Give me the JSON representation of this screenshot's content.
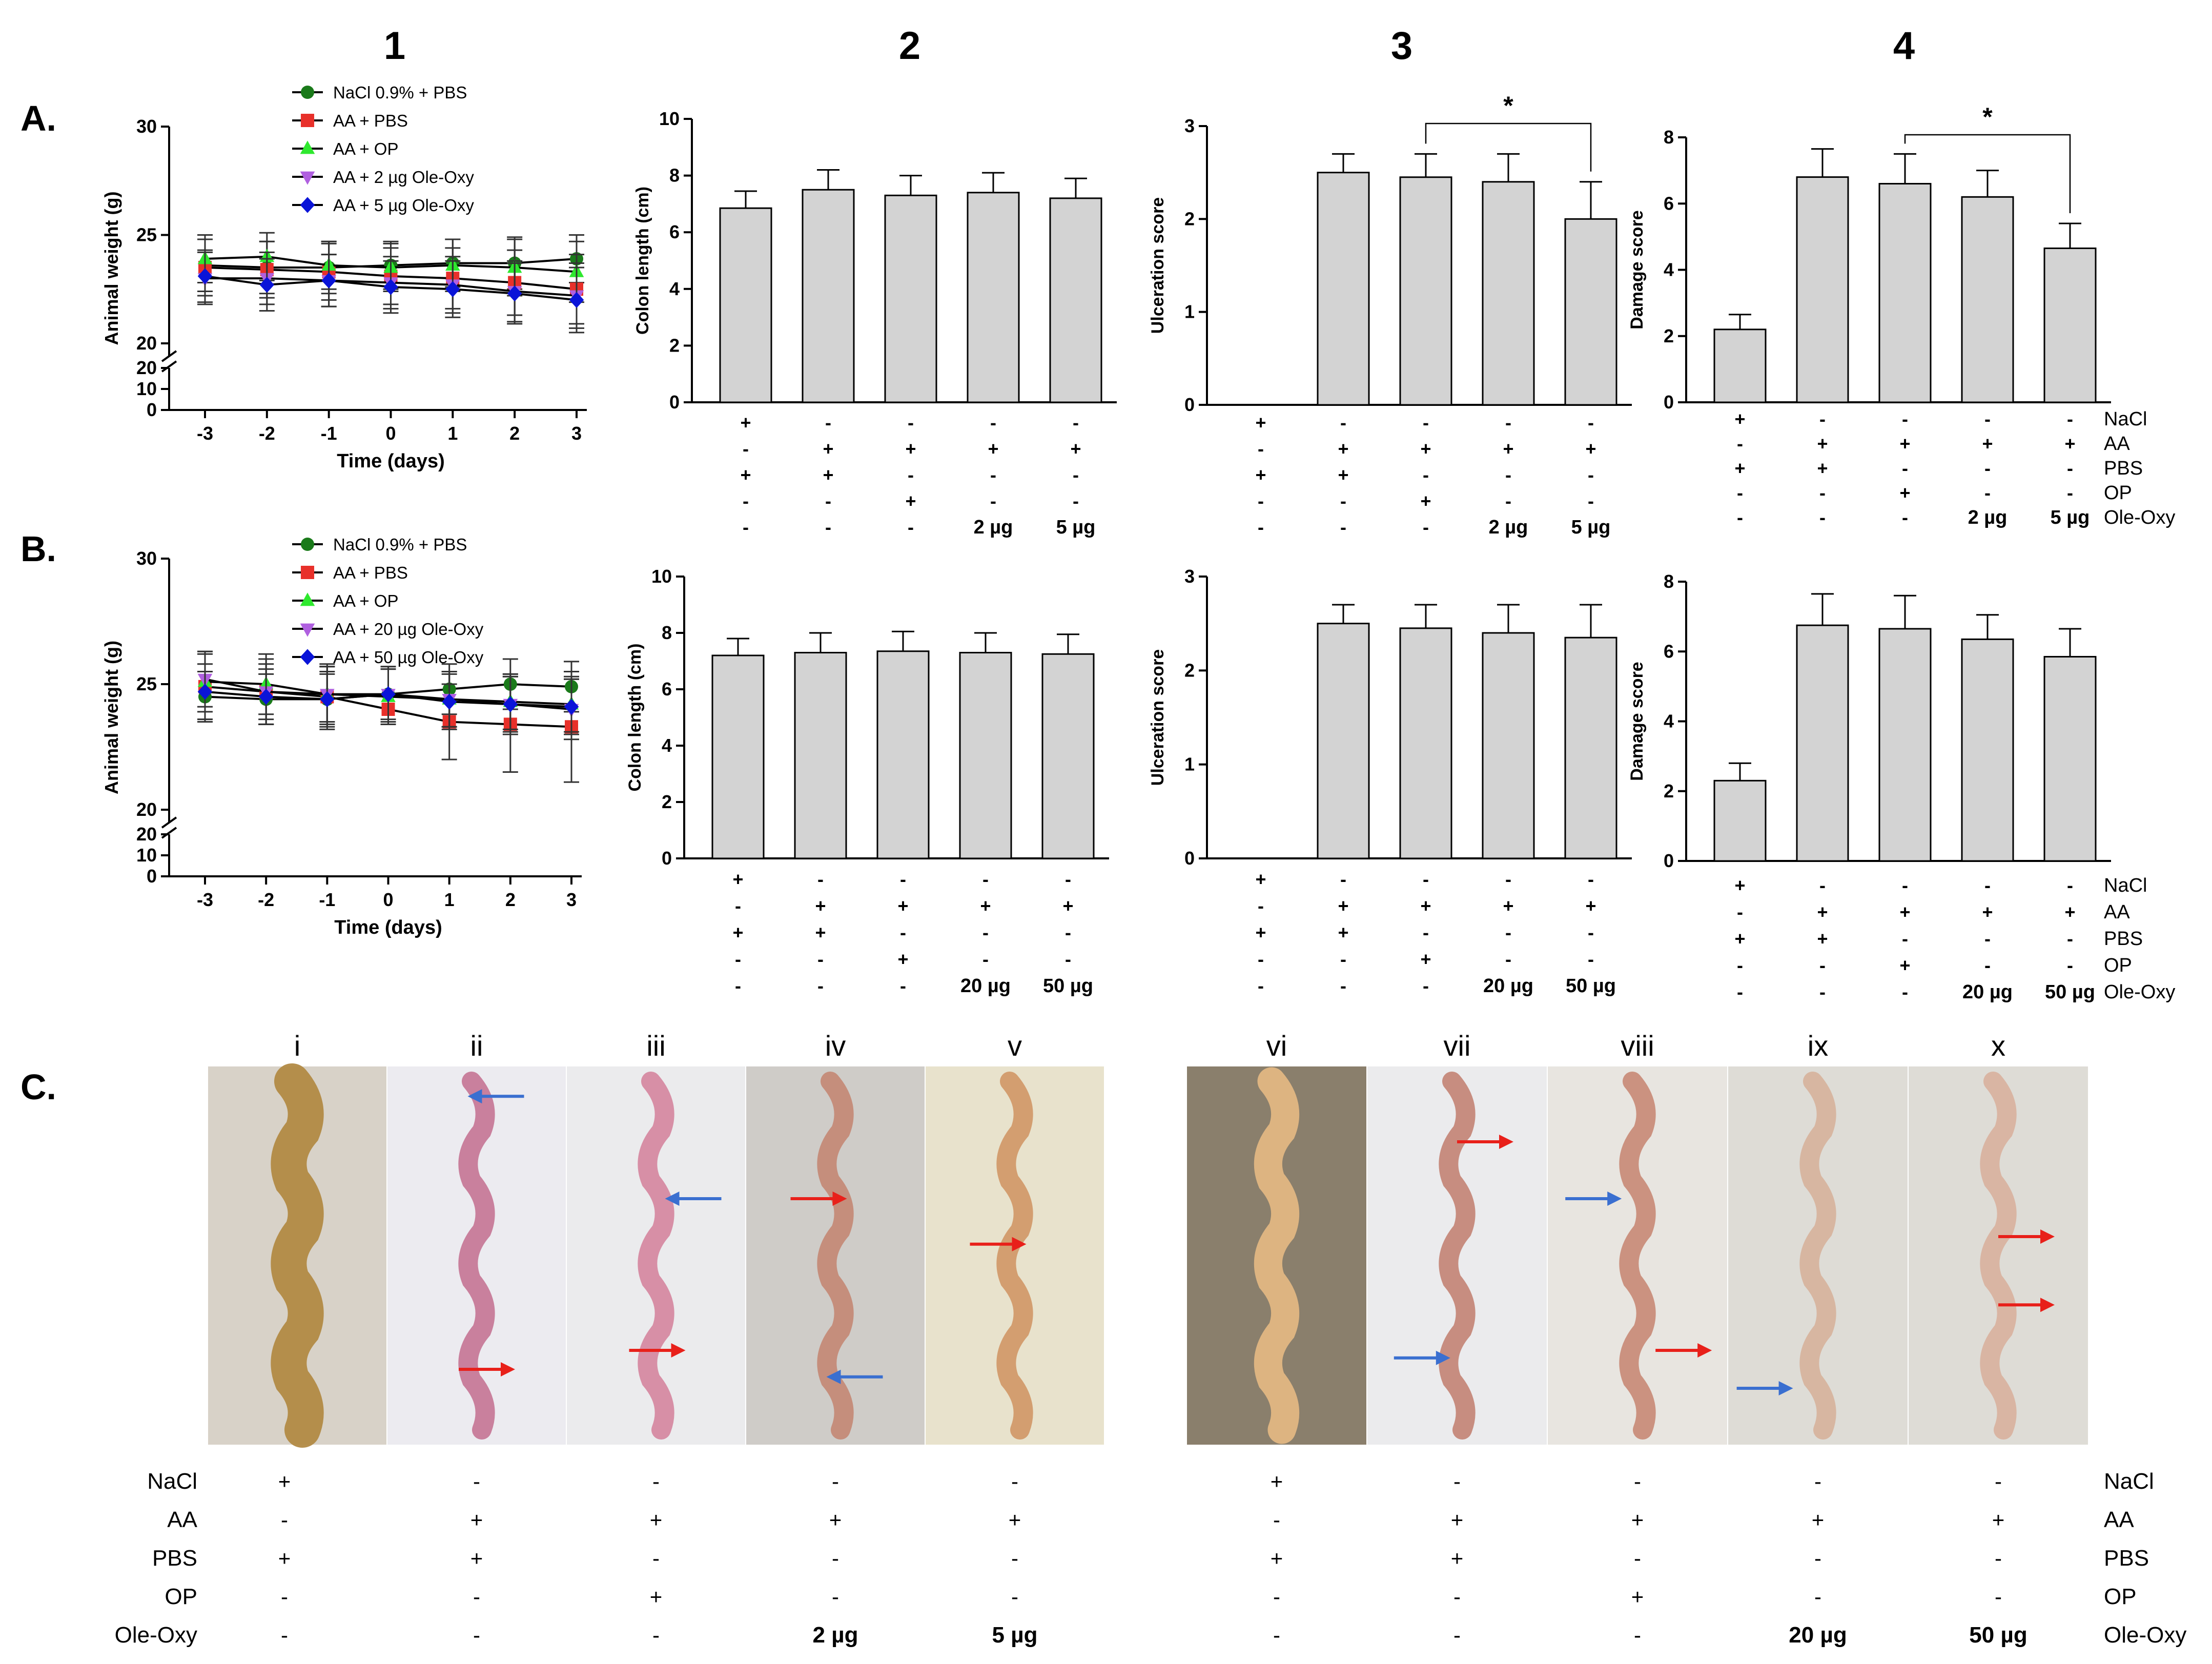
{
  "column_headers": [
    "1",
    "2",
    "3",
    "4"
  ],
  "panel_labels": {
    "A": "A.",
    "B": "B.",
    "C": "C."
  },
  "colors": {
    "bar_fill": "#d3d3d3",
    "axis": "#000000",
    "series": [
      "#1a7a1a",
      "#e8302a",
      "#2ee82e",
      "#b060e0",
      "#0a14d8"
    ],
    "arrow_red": "#e8201a",
    "arrow_blue": "#3a6fd0"
  },
  "chart_data": [
    {
      "id": "A1",
      "type": "line",
      "ylabel": "Animal weight (g)",
      "xlabel": "Time (days)",
      "ylim": [
        20,
        30
      ],
      "yticks": [
        20,
        25,
        30
      ],
      "broken_yticks": [
        0,
        10,
        20
      ],
      "x": [
        -3,
        -2,
        -1,
        0,
        1,
        2,
        3
      ],
      "series": [
        {
          "name": "NaCl 0.9% + PBS",
          "marker": "circle",
          "values": [
            23.6,
            23.5,
            23.5,
            23.6,
            23.7,
            23.7,
            23.9
          ],
          "err": [
            1.2,
            1.2,
            1.2,
            1.1,
            1.1,
            1.2,
            1.1
          ]
        },
        {
          "name": "AA + PBS",
          "marker": "square",
          "values": [
            23.5,
            23.4,
            23.3,
            23.1,
            23.0,
            22.8,
            22.5
          ],
          "err": [
            1.3,
            1.3,
            1.3,
            1.3,
            1.4,
            1.5,
            1.6
          ]
        },
        {
          "name": "AA + OP",
          "marker": "triangle-up",
          "values": [
            23.9,
            24.0,
            23.6,
            23.5,
            23.6,
            23.5,
            23.3
          ],
          "err": [
            1.1,
            1.1,
            1.1,
            1.1,
            1.2,
            1.3,
            1.4
          ]
        },
        {
          "name": "AA + 2 µg Ole-Oxy",
          "marker": "triangle-down",
          "values": [
            23.0,
            23.0,
            22.9,
            22.8,
            22.7,
            22.4,
            22.2
          ],
          "err": [
            1.2,
            1.2,
            1.2,
            1.2,
            1.3,
            1.4,
            1.5
          ]
        },
        {
          "name": "AA + 5 µg Ole-Oxy",
          "marker": "diamond",
          "values": [
            23.1,
            22.7,
            22.9,
            22.6,
            22.5,
            22.3,
            22.0
          ],
          "err": [
            1.2,
            1.2,
            1.2,
            1.2,
            1.3,
            1.4,
            1.5
          ]
        }
      ]
    },
    {
      "id": "A2",
      "type": "bar",
      "ylabel": "Colon length (cm)",
      "ylim": [
        0,
        10
      ],
      "yticks": [
        0,
        2,
        4,
        6,
        8,
        10
      ],
      "values": [
        6.85,
        7.5,
        7.3,
        7.4,
        7.2
      ],
      "err": [
        0.6,
        0.7,
        0.7,
        0.7,
        0.7
      ],
      "conditions": {
        "NaCl": [
          "+",
          "-",
          "-",
          "-",
          "-"
        ],
        "AA": [
          "-",
          "+",
          "+",
          "+",
          "+"
        ],
        "PBS": [
          "+",
          "+",
          "-",
          "-",
          "-"
        ],
        "OP": [
          "-",
          "-",
          "+",
          "-",
          "-"
        ],
        "Ole-Oxy": [
          "-",
          "-",
          "-",
          "2 µg",
          "5 µg"
        ]
      }
    },
    {
      "id": "A3",
      "type": "bar",
      "ylabel": "Ulceration score",
      "ylim": [
        0,
        3
      ],
      "yticks": [
        0,
        1,
        2,
        3
      ],
      "values": [
        0,
        2.5,
        2.45,
        2.4,
        2.0
      ],
      "err": [
        0,
        0.2,
        0.25,
        0.3,
        0.4
      ],
      "significance": {
        "from": 2,
        "to": 4,
        "label": "*"
      },
      "conditions": {
        "NaCl": [
          "+",
          "-",
          "-",
          "-",
          "-"
        ],
        "AA": [
          "-",
          "+",
          "+",
          "+",
          "+"
        ],
        "PBS": [
          "+",
          "+",
          "-",
          "-",
          "-"
        ],
        "OP": [
          "-",
          "-",
          "+",
          "-",
          "-"
        ],
        "Ole-Oxy": [
          "-",
          "-",
          "-",
          "2 µg",
          "5 µg"
        ]
      }
    },
    {
      "id": "A4",
      "type": "bar",
      "ylabel": "Damage score",
      "ylim": [
        0,
        8
      ],
      "yticks": [
        0,
        2,
        4,
        6,
        8
      ],
      "values": [
        2.2,
        6.8,
        6.6,
        6.2,
        4.65
      ],
      "err": [
        0.45,
        0.85,
        0.9,
        0.8,
        0.75
      ],
      "significance": {
        "from": 2,
        "to": 4,
        "label": "*"
      },
      "conditions": {
        "NaCl": [
          "+",
          "-",
          "-",
          "-",
          "-"
        ],
        "AA": [
          "-",
          "+",
          "+",
          "+",
          "+"
        ],
        "PBS": [
          "+",
          "+",
          "-",
          "-",
          "-"
        ],
        "OP": [
          "-",
          "-",
          "+",
          "-",
          "-"
        ],
        "Ole-Oxy": [
          "-",
          "-",
          "-",
          "2 µg",
          "5 µg"
        ]
      }
    },
    {
      "id": "B1",
      "type": "line",
      "ylabel": "Animal weight (g)",
      "xlabel": "Time (days)",
      "ylim": [
        20,
        30
      ],
      "yticks": [
        20,
        25,
        30
      ],
      "broken_yticks": [
        0,
        10,
        20
      ],
      "x": [
        -3,
        -2,
        -1,
        0,
        1,
        2,
        3
      ],
      "series": [
        {
          "name": "NaCl 0.9% + PBS",
          "marker": "circle",
          "values": [
            24.5,
            24.4,
            24.4,
            24.6,
            24.8,
            25.0,
            24.9
          ],
          "err": [
            1.0,
            1.0,
            1.0,
            1.0,
            1.0,
            1.0,
            1.0
          ]
        },
        {
          "name": "AA + PBS",
          "marker": "square",
          "values": [
            24.9,
            24.7,
            24.5,
            24.0,
            23.5,
            23.4,
            23.3
          ],
          "err": [
            1.3,
            1.3,
            1.3,
            0.6,
            1.5,
            1.9,
            2.2
          ]
        },
        {
          "name": "AA + OP",
          "marker": "triangle-up",
          "values": [
            25.1,
            25.0,
            24.6,
            24.5,
            24.4,
            24.3,
            24.2
          ],
          "err": [
            1.2,
            1.2,
            1.1,
            1.1,
            1.1,
            1.1,
            1.1
          ]
        },
        {
          "name": "AA + 20 µg Ole-Oxy",
          "marker": "triangle-down",
          "values": [
            25.2,
            24.7,
            24.6,
            24.6,
            24.4,
            24.2,
            24.0
          ],
          "err": [
            1.1,
            1.1,
            1.1,
            1.1,
            1.1,
            1.2,
            1.2
          ]
        },
        {
          "name": "AA + 50 µg Ole-Oxy",
          "marker": "diamond",
          "values": [
            24.7,
            24.5,
            24.4,
            24.6,
            24.3,
            24.2,
            24.1
          ],
          "err": [
            1.1,
            1.1,
            1.1,
            1.1,
            1.1,
            1.1,
            1.1
          ]
        }
      ]
    },
    {
      "id": "B2",
      "type": "bar",
      "ylabel": "Colon length (cm)",
      "ylim": [
        0,
        10
      ],
      "yticks": [
        0,
        2,
        4,
        6,
        8,
        10
      ],
      "values": [
        7.2,
        7.3,
        7.35,
        7.3,
        7.25
      ],
      "err": [
        0.6,
        0.7,
        0.7,
        0.7,
        0.7
      ],
      "conditions": {
        "NaCl": [
          "+",
          "-",
          "-",
          "-",
          "-"
        ],
        "AA": [
          "-",
          "+",
          "+",
          "+",
          "+"
        ],
        "PBS": [
          "+",
          "+",
          "-",
          "-",
          "-"
        ],
        "OP": [
          "-",
          "-",
          "+",
          "-",
          "-"
        ],
        "Ole-Oxy": [
          "-",
          "-",
          "-",
          "20 µg",
          "50 µg"
        ]
      }
    },
    {
      "id": "B3",
      "type": "bar",
      "ylabel": "Ulceration score",
      "ylim": [
        0,
        3
      ],
      "yticks": [
        0,
        1,
        2,
        3
      ],
      "values": [
        0,
        2.5,
        2.45,
        2.4,
        2.35
      ],
      "err": [
        0,
        0.2,
        0.25,
        0.3,
        0.35
      ],
      "conditions": {
        "NaCl": [
          "+",
          "-",
          "-",
          "-",
          "-"
        ],
        "AA": [
          "-",
          "+",
          "+",
          "+",
          "+"
        ],
        "PBS": [
          "+",
          "+",
          "-",
          "-",
          "-"
        ],
        "OP": [
          "-",
          "-",
          "+",
          "-",
          "-"
        ],
        "Ole-Oxy": [
          "-",
          "-",
          "-",
          "20 µg",
          "50 µg"
        ]
      }
    },
    {
      "id": "B4",
      "type": "bar",
      "ylabel": "Damage score",
      "ylim": [
        0,
        8
      ],
      "yticks": [
        0,
        2,
        4,
        6,
        8
      ],
      "values": [
        2.3,
        6.75,
        6.65,
        6.35,
        5.85
      ],
      "err": [
        0.5,
        0.9,
        0.95,
        0.7,
        0.8
      ],
      "conditions": {
        "NaCl": [
          "+",
          "-",
          "-",
          "-",
          "-"
        ],
        "AA": [
          "-",
          "+",
          "+",
          "+",
          "+"
        ],
        "PBS": [
          "+",
          "+",
          "-",
          "-",
          "-"
        ],
        "OP": [
          "-",
          "-",
          "+",
          "-",
          "-"
        ],
        "Ole-Oxy": [
          "-",
          "-",
          "-",
          "20 µg",
          "50 µg"
        ]
      }
    }
  ],
  "condition_row_names": [
    "NaCl",
    "AA",
    "PBS",
    "OP",
    "Ole-Oxy"
  ],
  "photos": {
    "left": [
      {
        "label": "i",
        "tissue": "#b28a45",
        "bg": "#d8d2c8",
        "arrows": []
      },
      {
        "label": "ii",
        "tissue": "#c77a98",
        "bg": "#ecebf0",
        "arrows": [
          {
            "color": "blue",
            "fx": 0.45,
            "fy": 0.08
          },
          {
            "color": "red",
            "fx": 0.4,
            "fy": 0.8
          }
        ]
      },
      {
        "label": "iii",
        "tissue": "#d68aa2",
        "bg": "#ebebed",
        "arrows": [
          {
            "color": "blue",
            "fx": 0.55,
            "fy": 0.35
          },
          {
            "color": "red",
            "fx": 0.35,
            "fy": 0.75
          }
        ]
      },
      {
        "label": "iv",
        "tissue": "#c48a78",
        "bg": "#cfccc8",
        "arrows": [
          {
            "color": "red",
            "fx": 0.25,
            "fy": 0.35
          },
          {
            "color": "blue",
            "fx": 0.45,
            "fy": 0.82
          }
        ]
      },
      {
        "label": "v",
        "tissue": "#d29a6a",
        "bg": "#e8e2cc",
        "arrows": [
          {
            "color": "red",
            "fx": 0.25,
            "fy": 0.47
          }
        ]
      }
    ],
    "right": [
      {
        "label": "vi",
        "tissue": "#e1b783",
        "bg": "#8a7f6c",
        "arrows": []
      },
      {
        "label": "vii",
        "tissue": "#c5887a",
        "bg": "#ebebed",
        "arrows": [
          {
            "color": "red",
            "fx": 0.5,
            "fy": 0.2
          },
          {
            "color": "blue",
            "fx": 0.15,
            "fy": 0.77
          }
        ]
      },
      {
        "label": "viii",
        "tissue": "#c98d7a",
        "bg": "#e8e5e0",
        "arrows": [
          {
            "color": "blue",
            "fx": 0.1,
            "fy": 0.35
          },
          {
            "color": "red",
            "fx": 0.6,
            "fy": 0.75
          }
        ]
      },
      {
        "label": "ix",
        "tissue": "#d6b39e",
        "bg": "#dedcd6",
        "arrows": [
          {
            "color": "blue",
            "fx": 0.05,
            "fy": 0.85
          }
        ]
      },
      {
        "label": "x",
        "tissue": "#d8b2a0",
        "bg": "#dedcd6",
        "arrows": [
          {
            "color": "red",
            "fx": 0.5,
            "fy": 0.45
          },
          {
            "color": "red",
            "fx": 0.5,
            "fy": 0.63
          }
        ]
      }
    ],
    "conditions_left": {
      "NaCl": [
        "+",
        "-",
        "-",
        "-",
        "-"
      ],
      "AA": [
        "-",
        "+",
        "+",
        "+",
        "+"
      ],
      "PBS": [
        "+",
        "+",
        "-",
        "-",
        "-"
      ],
      "OP": [
        "-",
        "-",
        "+",
        "-",
        "-"
      ],
      "Ole-Oxy": [
        "-",
        "-",
        "-",
        "2 µg",
        "5 µg"
      ]
    },
    "conditions_right": {
      "NaCl": [
        "+",
        "-",
        "-",
        "-",
        "-"
      ],
      "AA": [
        "-",
        "+",
        "+",
        "+",
        "+"
      ],
      "PBS": [
        "+",
        "+",
        "-",
        "-",
        "-"
      ],
      "OP": [
        "-",
        "-",
        "+",
        "-",
        "-"
      ],
      "Ole-Oxy": [
        "-",
        "-",
        "-",
        "20 µg",
        "50 µg"
      ]
    }
  }
}
